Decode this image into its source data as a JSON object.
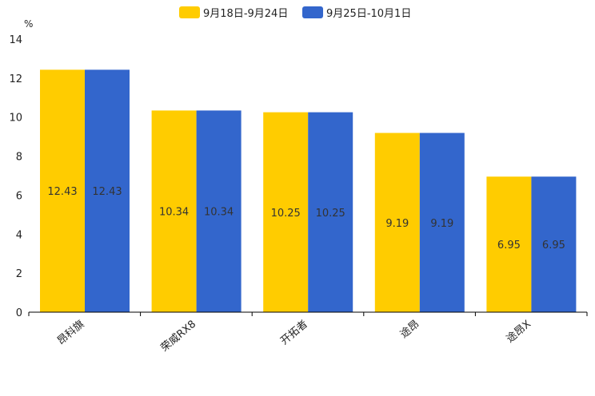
{
  "chart_data": {
    "type": "bar",
    "unit": "%",
    "categories": [
      "昂科旗",
      "荣威RX8",
      "开拓者",
      "途昂",
      "途昂X"
    ],
    "series": [
      {
        "name": "9月18日-9月24日",
        "color": "#FFCC00",
        "values": [
          12.43,
          10.34,
          10.25,
          9.19,
          6.95
        ]
      },
      {
        "name": "9月25日-10月1日",
        "color": "#3366CC",
        "values": [
          12.43,
          10.34,
          10.25,
          9.19,
          6.95
        ]
      }
    ],
    "ylim": [
      0,
      14
    ],
    "yticks": [
      0,
      2,
      4,
      6,
      8,
      10,
      12,
      14
    ],
    "grid": false,
    "legend": "top-center"
  }
}
